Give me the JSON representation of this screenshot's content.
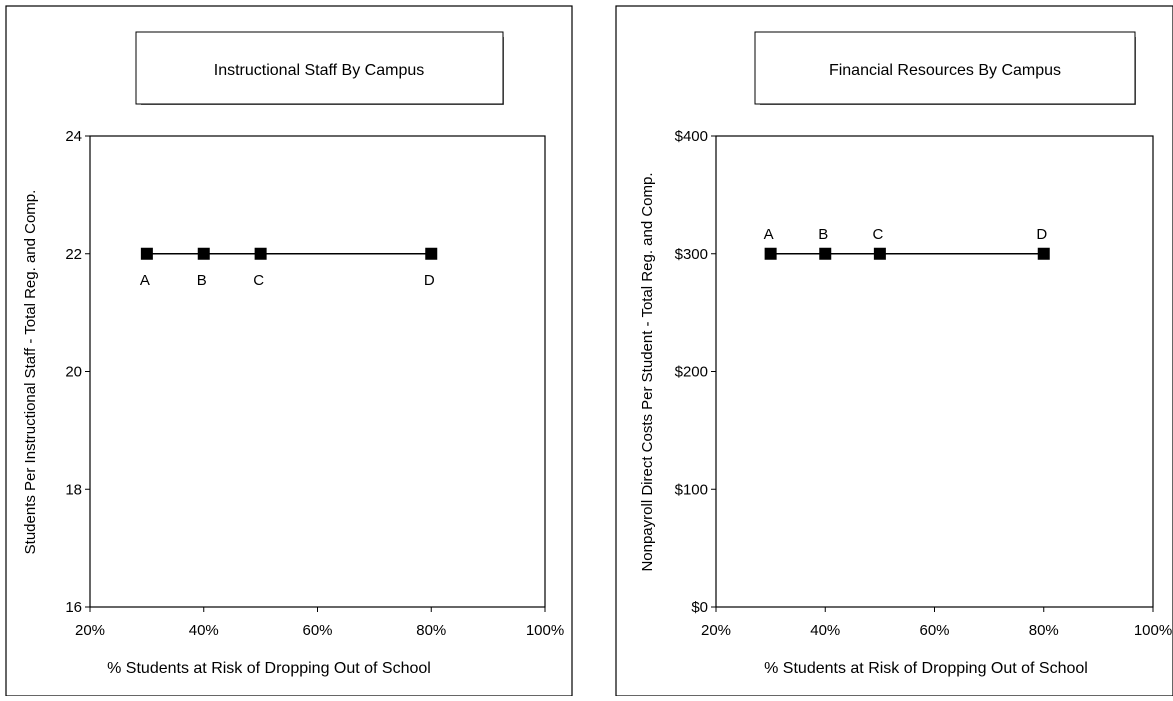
{
  "chart_data": [
    {
      "type": "line",
      "title": "Instructional Staff By Campus",
      "xlabel": "% Students at Risk of Dropping Out of School",
      "ylabel": "Students Per Instructional Staff - Total Reg. and Comp.",
      "x_ticks": [
        "20%",
        "40%",
        "60%",
        "80%",
        "100%"
      ],
      "y_ticks": [
        "16",
        "18",
        "20",
        "22",
        "24"
      ],
      "xlim": [
        20,
        100
      ],
      "ylim": [
        16,
        24
      ],
      "label_position": "below",
      "grid": false,
      "series": [
        {
          "points": [
            {
              "label": "A",
              "x": 30,
              "y": 22
            },
            {
              "label": "B",
              "x": 40,
              "y": 22
            },
            {
              "label": "C",
              "x": 50,
              "y": 22
            },
            {
              "label": "D",
              "x": 80,
              "y": 22
            }
          ]
        }
      ]
    },
    {
      "type": "line",
      "title": "Financial Resources By Campus",
      "xlabel": "% Students at Risk of Dropping Out of School",
      "ylabel": "Nonpayroll Direct Costs Per Student - Total Reg. and Comp.",
      "x_ticks": [
        "20%",
        "40%",
        "60%",
        "80%",
        "100%"
      ],
      "y_ticks": [
        "$0",
        "$100",
        "$200",
        "$300",
        "$400"
      ],
      "xlim": [
        20,
        100
      ],
      "ylim": [
        0,
        400
      ],
      "label_position": "above",
      "grid": false,
      "series": [
        {
          "points": [
            {
              "label": "A",
              "x": 30,
              "y": 300
            },
            {
              "label": "B",
              "x": 40,
              "y": 300
            },
            {
              "label": "C",
              "x": 50,
              "y": 300
            },
            {
              "label": "D",
              "x": 80,
              "y": 300
            }
          ]
        }
      ]
    }
  ]
}
